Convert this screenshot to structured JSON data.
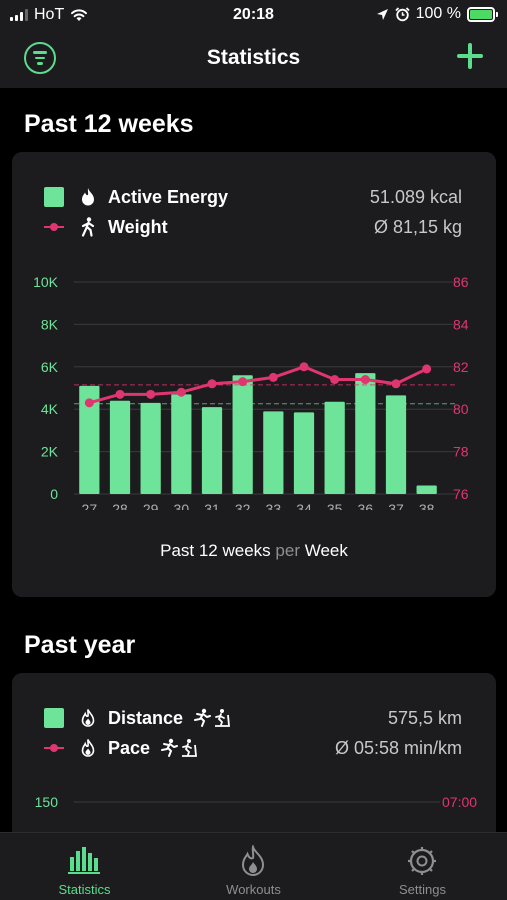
{
  "status": {
    "carrier": "HoT",
    "time": "20:18",
    "battery": "100 %"
  },
  "nav": {
    "title": "Statistics"
  },
  "weeks_section": {
    "title": "Past 12 weeks",
    "legend": [
      {
        "label": "Active Energy",
        "value": "51.089 kcal",
        "icon": "flame-icon"
      },
      {
        "label": "Weight",
        "value": "Ø  81,15 kg",
        "icon": "walking-person-icon"
      }
    ],
    "caption_main": "Past 12 weeks",
    "caption_per": "per",
    "caption_unit": "Week"
  },
  "year_section": {
    "title": "Past year",
    "legend": [
      {
        "label": "Distance",
        "value": "575,5 km",
        "icon": "flame-outline-icon"
      },
      {
        "label": "Pace",
        "value": "Ø  05:58 min/km",
        "icon": "flame-outline-icon"
      }
    ],
    "left_axis_top": "150",
    "right_axis_top": "07:00"
  },
  "tabs": [
    {
      "label": "Statistics",
      "icon": "bar-chart-icon",
      "active": true
    },
    {
      "label": "Workouts",
      "icon": "flame-icon",
      "active": false
    },
    {
      "label": "Settings",
      "icon": "gear-icon",
      "active": false
    }
  ],
  "colors": {
    "accent_green": "#6ee39a",
    "accent_pink": "#e0366f",
    "card_bg": "#1c1c1e"
  },
  "chart_data": {
    "type": "bar",
    "categories": [
      "27",
      "28",
      "29",
      "30",
      "31",
      "32",
      "33",
      "34",
      "35",
      "36",
      "37",
      "38"
    ],
    "series": [
      {
        "name": "Active Energy",
        "type": "bar",
        "axis": "left",
        "values": [
          5100,
          4400,
          4300,
          4700,
          4100,
          5600,
          3900,
          3850,
          4350,
          5700,
          4650,
          400
        ]
      },
      {
        "name": "Weight",
        "type": "line",
        "axis": "right",
        "values": [
          80.3,
          80.7,
          80.7,
          80.8,
          81.2,
          81.3,
          81.5,
          82.0,
          81.4,
          81.4,
          81.2,
          81.9
        ]
      }
    ],
    "left_axis": {
      "ticks": [
        "0",
        "2K",
        "4K",
        "6K",
        "8K",
        "10K"
      ],
      "range": [
        0,
        10000
      ]
    },
    "right_axis": {
      "ticks": [
        "76",
        "78",
        "80",
        "82",
        "84",
        "86"
      ],
      "range": [
        76,
        86
      ]
    },
    "averages": {
      "left": 4258,
      "right": 81.15
    },
    "grid": true
  }
}
